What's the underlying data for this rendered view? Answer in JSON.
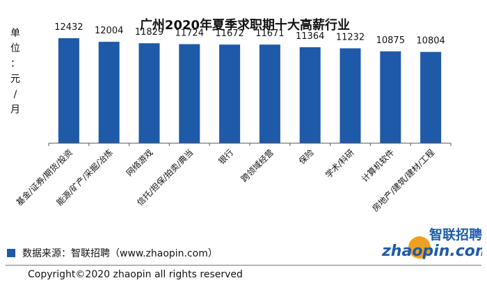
{
  "chart_data": {
    "type": "bar",
    "title": "广州2020年夏季求职期十大高薪行业",
    "ylabel": "单位：元/月",
    "xlabel": "",
    "categories": [
      "基金/证券/期货/投资",
      "能源/矿产/采掘/冶炼",
      "网络游戏",
      "信托/担保/拍卖/典当",
      "银行",
      "跨领域经营",
      "保险",
      "学术/科研",
      "计算机软件",
      "房地产/建筑/建材/工程"
    ],
    "values": [
      12432,
      12004,
      11829,
      11724,
      11672,
      11671,
      11364,
      11232,
      10875,
      10804
    ],
    "value_labels": [
      "12432",
      "12004",
      "11829",
      "11724",
      "11672",
      "11671",
      "11364",
      "11232",
      "10875",
      "10804"
    ],
    "ylim": [
      0,
      13000
    ],
    "grid": false,
    "bar_color": "#1e5aa8"
  },
  "legend": {
    "text": "数据来源：智联招聘（www.zhaopin.com）",
    "color": "#1e5aa8"
  },
  "footer": {
    "copyright": "Copyright©2020 zhaopin all rights reserved"
  },
  "logo": {
    "brand_cn": "智联招聘",
    "brand_en": "zhaopin.com"
  }
}
